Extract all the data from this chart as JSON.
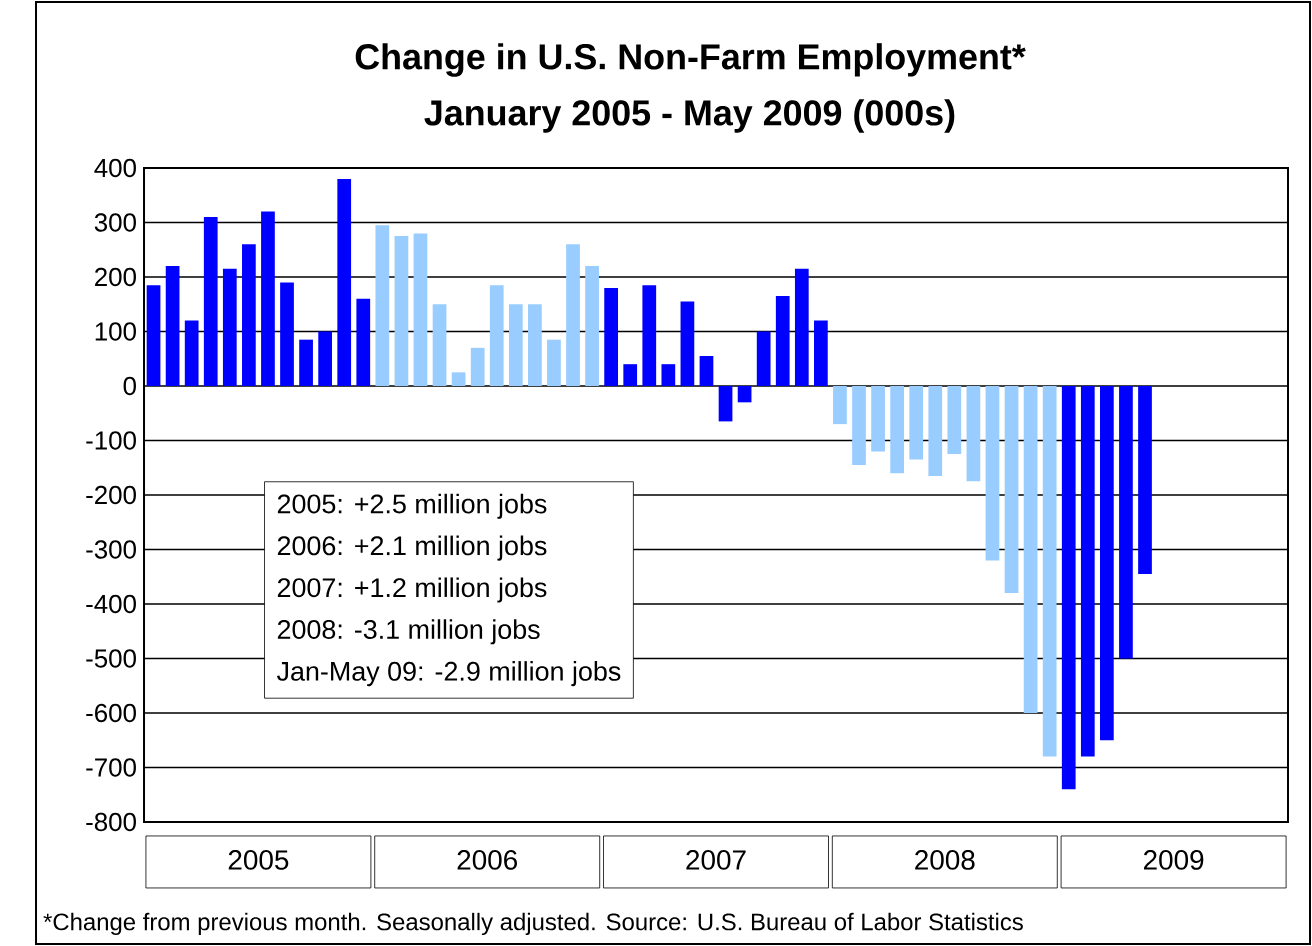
{
  "chart_data": {
    "type": "bar",
    "title": "Change in U.S. Non-Farm Employment*",
    "subtitle": "January 2005 - May 2009 (000s)",
    "categories": [
      null,
      null,
      null,
      null,
      null,
      null,
      null,
      null,
      null,
      null,
      null,
      null,
      null,
      null,
      null,
      null,
      null,
      null,
      null,
      null,
      null,
      null,
      null,
      null,
      null,
      null,
      null,
      null,
      null,
      null,
      null,
      null,
      null,
      null,
      null,
      null,
      null,
      null,
      null,
      null,
      null,
      null,
      null,
      null,
      null,
      null,
      null,
      null,
      null,
      null,
      null,
      null,
      null,
      null,
      null,
      null,
      null,
      null,
      null,
      null
    ],
    "values": [
      185,
      220,
      120,
      310,
      215,
      260,
      320,
      190,
      85,
      100,
      380,
      160,
      295,
      275,
      280,
      150,
      25,
      70,
      185,
      150,
      150,
      85,
      260,
      220,
      180,
      40,
      185,
      40,
      155,
      55,
      -65,
      -30,
      100,
      165,
      215,
      120,
      -70,
      -145,
      -120,
      -160,
      -135,
      -165,
      -125,
      -175,
      -320,
      -380,
      -600,
      -680,
      -740,
      -680,
      -650,
      -500,
      -345,
      null,
      null,
      null,
      null,
      null,
      null,
      null
    ],
    "colors": [
      "#0000ff",
      "#0000ff",
      "#0000ff",
      "#0000ff",
      "#0000ff",
      "#0000ff",
      "#0000ff",
      "#0000ff",
      "#0000ff",
      "#0000ff",
      "#0000ff",
      "#0000ff",
      "#99ccff",
      "#99ccff",
      "#99ccff",
      "#99ccff",
      "#99ccff",
      "#99ccff",
      "#99ccff",
      "#99ccff",
      "#99ccff",
      "#99ccff",
      "#99ccff",
      "#99ccff",
      "#0000ff",
      "#0000ff",
      "#0000ff",
      "#0000ff",
      "#0000ff",
      "#0000ff",
      "#0000ff",
      "#0000ff",
      "#0000ff",
      "#0000ff",
      "#0000ff",
      "#0000ff",
      "#99ccff",
      "#99ccff",
      "#99ccff",
      "#99ccff",
      "#99ccff",
      "#99ccff",
      "#99ccff",
      "#99ccff",
      "#99ccff",
      "#99ccff",
      "#99ccff",
      "#99ccff",
      "#0000ff",
      "#0000ff",
      "#0000ff",
      "#0000ff",
      "#0000ff",
      "#0000ff",
      "#0000ff",
      "#0000ff",
      "#0000ff",
      "#0000ff",
      "#0000ff",
      "#0000ff"
    ],
    "ylim": [
      -800,
      400
    ],
    "yticks": [
      -800,
      -700,
      -600,
      -500,
      -400,
      -300,
      -200,
      -100,
      0,
      100,
      200,
      300,
      400
    ],
    "grid": "y",
    "annotations": [
      "2005",
      "2006",
      "2007",
      "2008",
      "2009",
      "2005: +2.5 million jobs",
      "2006: +2.1 million jobs",
      "2007: +1.2 million  jobs",
      "2008: -3.1 million jobs",
      "Jan-May 09: -2.9 million jobs",
      "*Change from previous month.  Seasonally adjusted.  Source: U.S. Bureau of Labor Statistics"
    ]
  }
}
